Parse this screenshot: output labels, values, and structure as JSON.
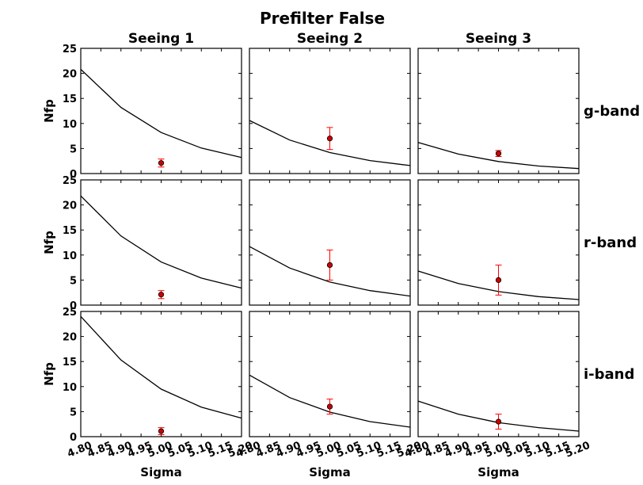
{
  "figure_title": "Prefilter False",
  "chart_data": {
    "type": "line",
    "title": "Prefilter False",
    "columns": [
      "Seeing 1",
      "Seeing 2",
      "Seeing 3"
    ],
    "rows": [
      "g-band",
      "r-band",
      "i-band"
    ],
    "xlabel": "Sigma",
    "ylabel": "Nfp",
    "xlim": [
      4.8,
      5.2
    ],
    "ylim": [
      0,
      25
    ],
    "x_ticks": [
      "4.80",
      "4.85",
      "4.90",
      "4.95",
      "5.00",
      "5.05",
      "5.10",
      "5.15",
      "5.20"
    ],
    "y_ticks": [
      "0",
      "5",
      "10",
      "15",
      "20",
      "25"
    ],
    "grid": false,
    "line_color": "#000000",
    "point_color": "#cc0000",
    "error_color": "#ff0000",
    "panels": [
      {
        "row": "g-band",
        "col": "Seeing 1",
        "curve": {
          "x": [
            4.8,
            4.9,
            5.0,
            5.1,
            5.2
          ],
          "y": [
            20.8,
            13.2,
            8.2,
            5.1,
            3.2
          ]
        },
        "point": {
          "x": 5.0,
          "y": 2.1,
          "yerr": 0.8
        }
      },
      {
        "row": "g-band",
        "col": "Seeing 2",
        "curve": {
          "x": [
            4.8,
            4.9,
            5.0,
            5.1,
            5.2
          ],
          "y": [
            10.6,
            6.7,
            4.2,
            2.6,
            1.6
          ]
        },
        "point": {
          "x": 5.0,
          "y": 7.0,
          "yerr": 2.2
        }
      },
      {
        "row": "g-band",
        "col": "Seeing 3",
        "curve": {
          "x": [
            4.8,
            4.9,
            5.0,
            5.1,
            5.2
          ],
          "y": [
            6.2,
            3.9,
            2.4,
            1.5,
            1.0
          ]
        },
        "point": {
          "x": 5.0,
          "y": 4.0,
          "yerr": 0.6
        }
      },
      {
        "row": "r-band",
        "col": "Seeing 1",
        "curve": {
          "x": [
            4.8,
            4.9,
            5.0,
            5.1,
            5.2
          ],
          "y": [
            21.8,
            13.8,
            8.6,
            5.4,
            3.4
          ]
        },
        "point": {
          "x": 5.0,
          "y": 2.1,
          "yerr": 0.8
        }
      },
      {
        "row": "r-band",
        "col": "Seeing 2",
        "curve": {
          "x": [
            4.8,
            4.9,
            5.0,
            5.1,
            5.2
          ],
          "y": [
            11.7,
            7.4,
            4.6,
            2.9,
            1.8
          ]
        },
        "point": {
          "x": 5.0,
          "y": 8.0,
          "yerr": 3.0
        }
      },
      {
        "row": "r-band",
        "col": "Seeing 3",
        "curve": {
          "x": [
            4.8,
            4.9,
            5.0,
            5.1,
            5.2
          ],
          "y": [
            6.8,
            4.3,
            2.7,
            1.7,
            1.1
          ]
        },
        "point": {
          "x": 5.0,
          "y": 5.0,
          "yerr": 3.0
        }
      },
      {
        "row": "i-band",
        "col": "Seeing 1",
        "curve": {
          "x": [
            4.8,
            4.9,
            5.0,
            5.1,
            5.2
          ],
          "y": [
            24.0,
            15.3,
            9.5,
            5.9,
            3.7
          ]
        },
        "point": {
          "x": 5.0,
          "y": 1.1,
          "yerr": 0.7
        }
      },
      {
        "row": "i-band",
        "col": "Seeing 2",
        "curve": {
          "x": [
            4.8,
            4.9,
            5.0,
            5.1,
            5.2
          ],
          "y": [
            12.3,
            7.8,
            4.9,
            3.0,
            1.9
          ]
        },
        "point": {
          "x": 5.0,
          "y": 6.0,
          "yerr": 1.5
        }
      },
      {
        "row": "i-band",
        "col": "Seeing 3",
        "curve": {
          "x": [
            4.8,
            4.9,
            5.0,
            5.1,
            5.2
          ],
          "y": [
            7.1,
            4.5,
            2.8,
            1.8,
            1.1
          ]
        },
        "point": {
          "x": 5.0,
          "y": 3.0,
          "yerr": 1.5
        }
      }
    ]
  }
}
